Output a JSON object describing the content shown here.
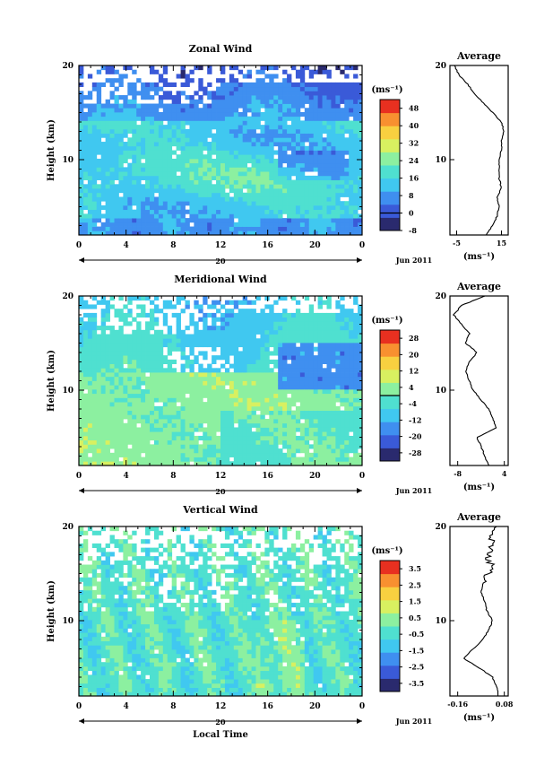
{
  "chart_data": [
    {
      "type": "heatmap",
      "title": "Zonal Wind",
      "ylabel": "Height (km)",
      "y_ticks": [
        "10",
        "20"
      ],
      "x_ticks": [
        "0",
        "4",
        "8",
        "12",
        "16",
        "20",
        "0"
      ],
      "xlim": [
        0,
        24
      ],
      "ylim": [
        2,
        20
      ],
      "date_tick": "20",
      "date_label": "Jun 2011",
      "colorbar": {
        "unit": "(ms⁻¹)",
        "ticks": [
          "48",
          "40",
          "32",
          "24",
          "16",
          "8",
          "0",
          "-8"
        ],
        "range": [
          -8,
          52
        ],
        "zero_line": 0,
        "colors": [
          "#2a2a6e",
          "#3a5ad8",
          "#3f8ff0",
          "#40c8f0",
          "#4fe0d0",
          "#8cf0a0",
          "#d8f060",
          "#f8d040",
          "#f89030",
          "#e83020"
        ]
      },
      "average": {
        "title": "Average",
        "xlabel": "(ms⁻¹)",
        "x_ticks": [
          "-5",
          "15"
        ],
        "xlim": [
          -8,
          18
        ],
        "y_ticks": [
          "10",
          "20"
        ],
        "height_km": [
          2,
          3,
          4,
          5,
          6,
          7,
          8,
          9,
          10,
          11,
          12,
          13,
          14,
          15,
          16,
          17,
          18,
          19,
          20
        ],
        "values": [
          8,
          11,
          13,
          14,
          13,
          15,
          14,
          14,
          14,
          15,
          15,
          16,
          15,
          11,
          7,
          3,
          0,
          -4,
          -6
        ]
      }
    },
    {
      "type": "heatmap",
      "title": "Meridional Wind",
      "ylabel": "Height (km)",
      "y_ticks": [
        "10",
        "20"
      ],
      "x_ticks": [
        "0",
        "4",
        "8",
        "12",
        "16",
        "20",
        "0"
      ],
      "xlim": [
        0,
        24
      ],
      "ylim": [
        2,
        20
      ],
      "date_tick": "20",
      "date_label": "Jun 2011",
      "colorbar": {
        "unit": "(ms⁻¹)",
        "ticks": [
          "28",
          "20",
          "12",
          "4",
          "-4",
          "-12",
          "-20",
          "-28"
        ],
        "range": [
          -32,
          32
        ],
        "zero_line": 0,
        "colors": [
          "#2a2a6e",
          "#3a5ad8",
          "#3f8ff0",
          "#40c8f0",
          "#4fe0d0",
          "#8cf0a0",
          "#d8f060",
          "#f8d040",
          "#f89030",
          "#e83020"
        ]
      },
      "average": {
        "title": "Average",
        "xlabel": "(ms⁻¹)",
        "x_ticks": [
          "-8",
          "4"
        ],
        "xlim": [
          -10,
          5
        ],
        "y_ticks": [
          "10",
          "20"
        ],
        "height_km": [
          2,
          3,
          4,
          5,
          6,
          7,
          8,
          9,
          10,
          11,
          12,
          13,
          14,
          15,
          16,
          17,
          18,
          19,
          20
        ],
        "values": [
          0,
          -1,
          -2,
          -3,
          2,
          1,
          0,
          -2,
          -4,
          -5,
          -6,
          -5,
          -3,
          -6,
          -5,
          -7,
          -9,
          -7,
          -1
        ]
      }
    },
    {
      "type": "heatmap",
      "title": "Vertical Wind",
      "ylabel": "Height (km)",
      "xlabel": "Local Time",
      "y_ticks": [
        "10",
        "20"
      ],
      "x_ticks": [
        "0",
        "4",
        "8",
        "12",
        "16",
        "20",
        "0"
      ],
      "xlim": [
        0,
        24
      ],
      "ylim": [
        2,
        20
      ],
      "date_tick": "20",
      "date_label": "Jun 2011",
      "colorbar": {
        "unit": "(ms⁻¹)",
        "ticks": [
          "3.5",
          "2.5",
          "1.5",
          "0.5",
          "-0.5",
          "-1.5",
          "-2.5",
          "-3.5"
        ],
        "range": [
          -4,
          4
        ],
        "colors": [
          "#2a2a6e",
          "#3a5ad8",
          "#3f8ff0",
          "#40c8f0",
          "#4fe0d0",
          "#8cf0a0",
          "#d8f060",
          "#f8d040",
          "#f89030",
          "#e83020"
        ]
      },
      "average": {
        "title": "Average",
        "xlabel": "(ms⁻¹)",
        "x_ticks": [
          "-0.16",
          "0.08"
        ],
        "xlim": [
          -0.2,
          0.1
        ],
        "y_ticks": [
          "10",
          "20"
        ],
        "height_km": [
          2,
          3,
          4,
          5,
          6,
          7,
          8,
          9,
          10,
          11,
          12,
          13,
          14,
          15,
          16,
          17,
          18,
          19,
          20
        ],
        "values": [
          0.05,
          0.04,
          0.02,
          -0.05,
          -0.13,
          -0.08,
          -0.03,
          0.0,
          0.02,
          -0.01,
          -0.02,
          -0.04,
          -0.03,
          0.0,
          0.01,
          -0.01,
          0.02,
          0.01,
          0.04
        ]
      }
    }
  ]
}
